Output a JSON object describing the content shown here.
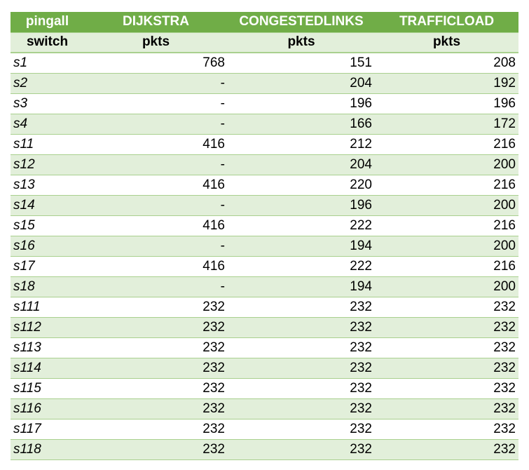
{
  "table": {
    "header_top": [
      "pingall",
      "DIJKSTRA",
      "CONGESTEDLINKS",
      "TRAFFICLOAD"
    ],
    "header_sub": [
      "switch",
      "pkts",
      "pkts",
      "pkts"
    ],
    "rows": [
      [
        "s1",
        "768",
        "151",
        "208"
      ],
      [
        "s2",
        "-",
        "204",
        "192"
      ],
      [
        "s3",
        "-",
        "196",
        "196"
      ],
      [
        "s4",
        "-",
        "166",
        "172"
      ],
      [
        "s11",
        "416",
        "212",
        "216"
      ],
      [
        "s12",
        "-",
        "204",
        "200"
      ],
      [
        "s13",
        "416",
        "220",
        "216"
      ],
      [
        "s14",
        "-",
        "196",
        "200"
      ],
      [
        "s15",
        "416",
        "222",
        "216"
      ],
      [
        "s16",
        "-",
        "194",
        "200"
      ],
      [
        "s17",
        "416",
        "222",
        "216"
      ],
      [
        "s18",
        "-",
        "194",
        "200"
      ],
      [
        "s111",
        "232",
        "232",
        "232"
      ],
      [
        "s112",
        "232",
        "232",
        "232"
      ],
      [
        "s113",
        "232",
        "232",
        "232"
      ],
      [
        "s114",
        "232",
        "232",
        "232"
      ],
      [
        "s115",
        "232",
        "232",
        "232"
      ],
      [
        "s116",
        "232",
        "232",
        "232"
      ],
      [
        "s117",
        "232",
        "232",
        "232"
      ],
      [
        "s118",
        "232",
        "232",
        "232"
      ]
    ]
  },
  "colors": {
    "header_green": "#70ad47",
    "band_light_green": "#e2efda",
    "border_green": "#a9d08e"
  }
}
